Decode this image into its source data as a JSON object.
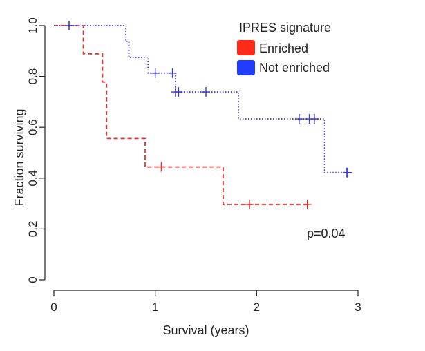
{
  "chart_data": {
    "type": "line",
    "subtype": "kaplan-meier",
    "title": "",
    "xlabel": "Survival (years)",
    "ylabel": "Fraction surviving",
    "xlim": [
      0,
      3
    ],
    "ylim": [
      0,
      1
    ],
    "xticks": [
      0,
      1,
      2,
      3
    ],
    "yticks": [
      0.0,
      0.2,
      0.4,
      0.6,
      0.8,
      1.0
    ],
    "xtick_labels": [
      "0",
      "1",
      "2",
      "3"
    ],
    "ytick_labels": [
      "0",
      "0.2",
      "0.4",
      "0.6",
      "0.8",
      "1.0"
    ],
    "grid": false,
    "legend": {
      "title": "IPRES signature",
      "position": "top-right",
      "entries": [
        "Enriched",
        "Not enriched"
      ]
    },
    "annotation": "p=0.04",
    "series": [
      {
        "name": "Enriched",
        "color": "#e8302a",
        "linestyle": "dashed",
        "steps": [
          [
            0,
            1.0
          ],
          [
            0.29,
            0.889
          ],
          [
            0.48,
            0.778
          ],
          [
            0.52,
            0.556
          ],
          [
            0.9,
            0.444
          ],
          [
            1.67,
            0.296
          ],
          [
            2.52,
            0.296
          ]
        ],
        "censored": [
          [
            0.15,
            1.0
          ],
          [
            1.06,
            0.444
          ],
          [
            1.93,
            0.296
          ],
          [
            2.5,
            0.296
          ]
        ]
      },
      {
        "name": "Not enriched",
        "color": "#3a3ad0",
        "linestyle": "dotted",
        "steps": [
          [
            0,
            1.0
          ],
          [
            0.71,
            0.938
          ],
          [
            0.74,
            0.875
          ],
          [
            0.93,
            0.813
          ],
          [
            1.2,
            0.739
          ],
          [
            1.82,
            0.633
          ],
          [
            2.67,
            0.422
          ],
          [
            2.9,
            0.422
          ]
        ],
        "censored": [
          [
            0.15,
            1.0
          ],
          [
            1.0,
            0.813
          ],
          [
            1.17,
            0.813
          ],
          [
            1.2,
            0.739
          ],
          [
            1.23,
            0.739
          ],
          [
            1.5,
            0.739
          ],
          [
            2.42,
            0.633
          ],
          [
            2.52,
            0.633
          ],
          [
            2.57,
            0.633
          ],
          [
            2.89,
            0.422
          ],
          [
            2.9,
            0.422
          ]
        ]
      }
    ]
  }
}
